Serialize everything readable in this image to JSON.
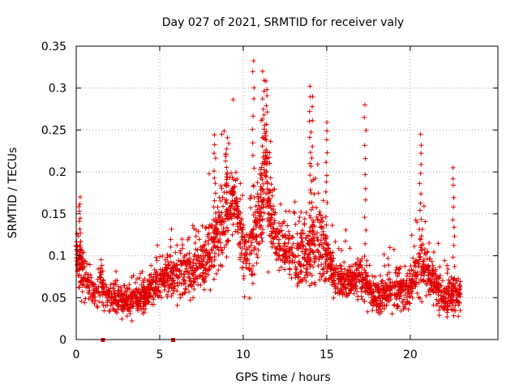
{
  "chart_data": {
    "type": "scatter",
    "title": "Day 027 of 2021, SRMTID for receiver valy",
    "xlabel": "GPS time / hours",
    "ylabel": "SRMTID / TECUs",
    "xlim": [
      0,
      25.25
    ],
    "ylim": [
      0,
      0.35
    ],
    "x_ticks": [
      "0",
      "5",
      "10",
      "15",
      "20"
    ],
    "x_tick_values": [
      0,
      5,
      10,
      15,
      20
    ],
    "y_ticks": [
      "0",
      "0.05",
      "0.1",
      "0.15",
      "0.2",
      "0.25",
      "0.3",
      "0.35"
    ],
    "y_tick_values": [
      0,
      0.05,
      0.1,
      0.15,
      0.2,
      0.25,
      0.3,
      0.35
    ],
    "grid": true,
    "marker": "+",
    "color": "#e00000",
    "gap_markers_x": [
      1.6,
      5.8
    ],
    "density_profile": {
      "x": [
        0,
        0.5,
        1,
        1.5,
        2,
        3,
        4,
        5,
        6,
        7,
        8,
        8.5,
        9,
        9.5,
        10,
        10.5,
        11,
        11.3,
        12,
        13,
        14,
        14.5,
        15,
        15.5,
        16,
        17,
        18,
        19,
        20,
        20.5,
        21,
        22,
        23
      ],
      "median": [
        0.1,
        0.07,
        0.06,
        0.07,
        0.05,
        0.045,
        0.05,
        0.07,
        0.08,
        0.08,
        0.1,
        0.12,
        0.15,
        0.17,
        0.1,
        0.11,
        0.15,
        0.19,
        0.11,
        0.1,
        0.1,
        0.12,
        0.1,
        0.07,
        0.07,
        0.07,
        0.05,
        0.06,
        0.06,
        0.1,
        0.08,
        0.05,
        0.05
      ],
      "spread": [
        0.05,
        0.03,
        0.03,
        0.03,
        0.025,
        0.02,
        0.025,
        0.03,
        0.04,
        0.04,
        0.05,
        0.06,
        0.07,
        0.06,
        0.05,
        0.06,
        0.08,
        0.09,
        0.05,
        0.05,
        0.06,
        0.07,
        0.04,
        0.03,
        0.03,
        0.03,
        0.025,
        0.03,
        0.03,
        0.06,
        0.04,
        0.03,
        0.03
      ]
    },
    "peaks": [
      {
        "x": 0.2,
        "y": 0.17
      },
      {
        "x": 8.3,
        "y": 0.245
      },
      {
        "x": 9.0,
        "y": 0.23
      },
      {
        "x": 10.6,
        "y": 0.335
      },
      {
        "x": 11.2,
        "y": 0.32
      },
      {
        "x": 11.4,
        "y": 0.31
      },
      {
        "x": 14.0,
        "y": 0.305
      },
      {
        "x": 14.1,
        "y": 0.29
      },
      {
        "x": 15.0,
        "y": 0.26
      },
      {
        "x": 17.3,
        "y": 0.28
      },
      {
        "x": 20.6,
        "y": 0.245
      },
      {
        "x": 22.6,
        "y": 0.205
      }
    ],
    "point_count": 2600
  }
}
